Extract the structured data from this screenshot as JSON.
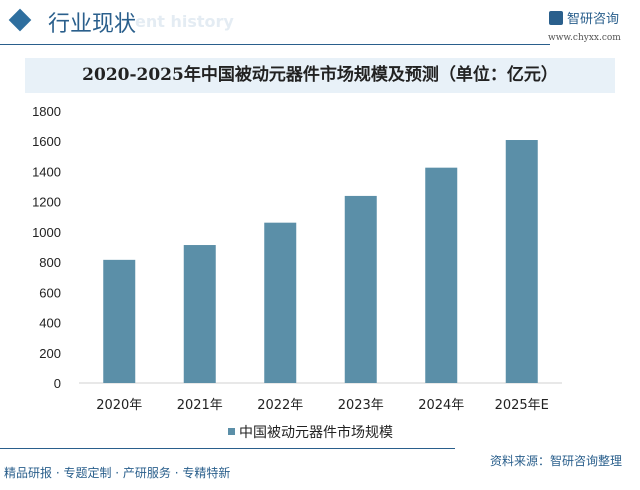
{
  "header": {
    "title": "行业现状",
    "ghost_text": "ent history",
    "logo_text": "智研咨询",
    "logo_url": "www.chyxx.com"
  },
  "chart_data": {
    "type": "bar",
    "title": "2020-2025年中国被动元器件市场规模及预测（单位：亿元）",
    "categories": [
      "2020年",
      "2021年",
      "2022年",
      "2023年",
      "2024年",
      "2025年E"
    ],
    "series": [
      {
        "name": "中国被动元器件市场规模",
        "values": [
          815,
          913,
          1061,
          1238,
          1425,
          1608
        ],
        "color": "#5b8fa8"
      }
    ],
    "ylim": [
      0,
      1800
    ],
    "yticks": [
      0,
      200,
      400,
      600,
      800,
      1000,
      1200,
      1400,
      1600,
      1800
    ],
    "grid": false,
    "legend": "bottom"
  },
  "footer": {
    "slogan": "精品研报 · 专题定制 · 产研服务 · 专精特新",
    "source": "资料来源：智研咨询整理"
  }
}
